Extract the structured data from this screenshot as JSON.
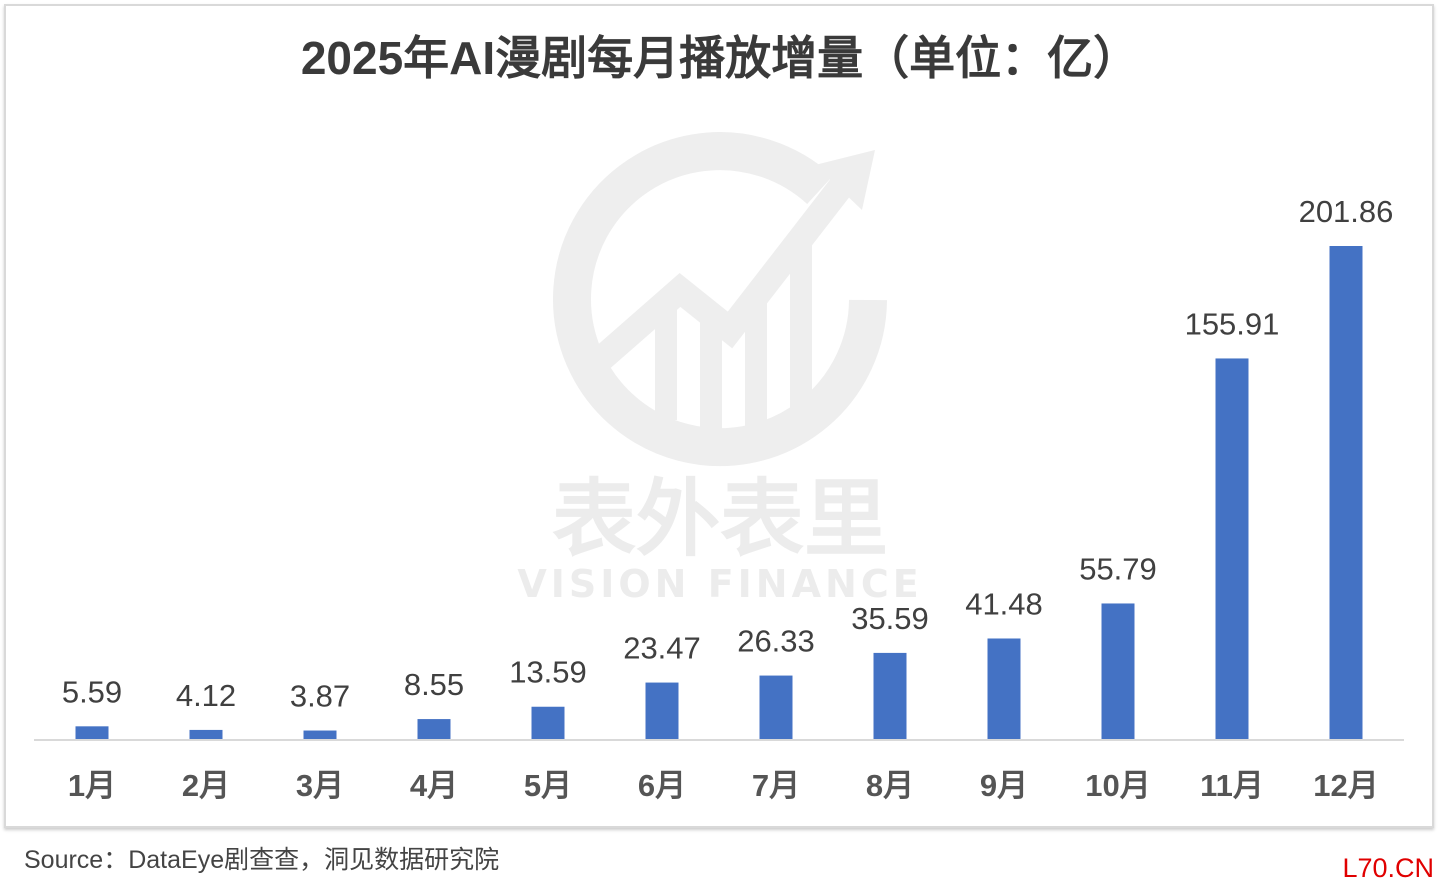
{
  "chart_data": {
    "type": "bar",
    "title": "2025年AI漫剧每月播放增量（单位：亿）",
    "categories": [
      "1月",
      "2月",
      "3月",
      "4月",
      "5月",
      "6月",
      "7月",
      "8月",
      "9月",
      "10月",
      "11月",
      "12月"
    ],
    "values": [
      5.59,
      4.12,
      3.87,
      8.55,
      13.59,
      23.47,
      26.33,
      35.59,
      41.48,
      55.79,
      155.91,
      201.86
    ],
    "value_labels": [
      "5.59",
      "4.12",
      "3.87",
      "8.55",
      "13.59",
      "23.47",
      "26.33",
      "35.59",
      "41.48",
      "55.79",
      "155.91",
      "201.86"
    ],
    "xlabel": "",
    "ylabel": "",
    "ylim": [
      0,
      201.86
    ],
    "grid": false,
    "bar_color": "#4472C4"
  },
  "source": "Source：DataEye剧查查，洞见数据研究院",
  "watermark": {
    "cn": "表外表里",
    "en": "VISION FINANCE",
    "site": "L70.CN"
  }
}
